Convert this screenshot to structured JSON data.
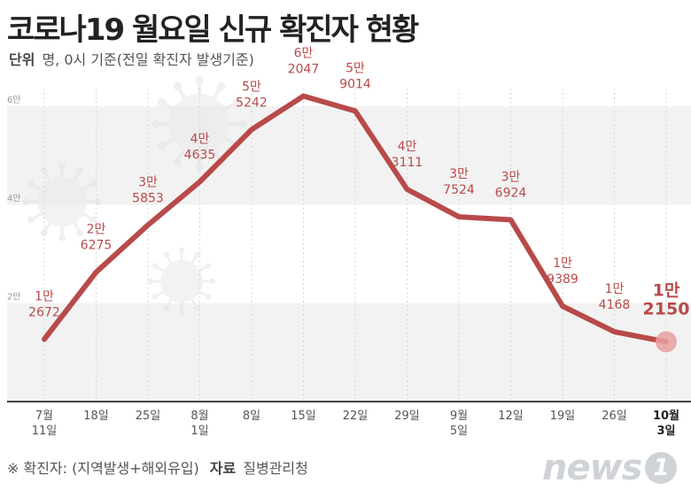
{
  "title": "코로나19 월요일 신규 확진자 현황",
  "subtitle": {
    "unit_label": "단위",
    "unit_text": "명, 0시 기준(전일 확진자 발생기준)"
  },
  "footer": {
    "note": "※ 확진자: (지역발생+해외유입)",
    "source_label": "자료",
    "source": "질병관리청"
  },
  "logo": {
    "text": "news",
    "badge": "1"
  },
  "chart_data": {
    "type": "line",
    "title": "코로나19 월요일 신규 확진자 현황",
    "ylabel": "명",
    "ylim": [
      0,
      60000
    ],
    "yticks": [
      {
        "value": 20000,
        "label": "2만"
      },
      {
        "value": 40000,
        "label": "4만"
      },
      {
        "value": 60000,
        "label": "6만"
      }
    ],
    "x_labels": [
      [
        "7월",
        "11일"
      ],
      [
        "18일"
      ],
      [
        "25일"
      ],
      [
        "8월",
        "1일"
      ],
      [
        "8일"
      ],
      [
        "15일"
      ],
      [
        "22일"
      ],
      [
        "29일"
      ],
      [
        "9월",
        "5일"
      ],
      [
        "12일"
      ],
      [
        "19일"
      ],
      [
        "26일"
      ],
      [
        "10월",
        "3일"
      ]
    ],
    "values": [
      12672,
      26275,
      35853,
      44635,
      55242,
      62047,
      59014,
      43111,
      37524,
      36924,
      19389,
      14168,
      12150
    ],
    "value_labels": [
      [
        "1만",
        "2672"
      ],
      [
        "2만",
        "6275"
      ],
      [
        "3만",
        "5853"
      ],
      [
        "4만",
        "4635"
      ],
      [
        "5만",
        "5242"
      ],
      [
        "6만",
        "2047"
      ],
      [
        "5만",
        "9014"
      ],
      [
        "4만",
        "3111"
      ],
      [
        "3만",
        "7524"
      ],
      [
        "3만",
        "6924"
      ],
      [
        "1만",
        "9389"
      ],
      [
        "1만",
        "4168"
      ],
      [
        "1만",
        "2150"
      ]
    ],
    "highlight_index": 12,
    "colors": {
      "line": "#b84a4a",
      "label": "#b84a4a",
      "grid_band": "#f2f2f2",
      "highlight_dot": "#e8a0a0"
    }
  }
}
